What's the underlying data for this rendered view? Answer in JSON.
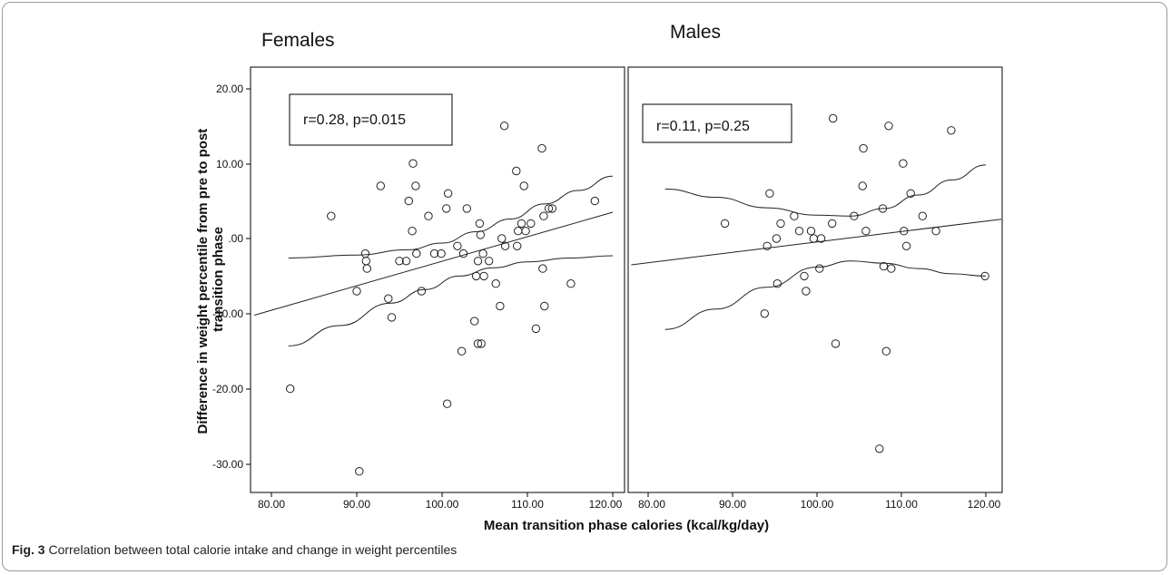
{
  "caption": {
    "label": "Fig. 3",
    "text": "Correlation between total calorie intake and change in weight percentiles"
  },
  "chart_data": {
    "type": "scatter",
    "xlabel": "Mean transition phase calories (kcal/kg/day)",
    "ylabel": "Difference in weight percentile from pre to post transition phase",
    "xlim": [
      78,
      122
    ],
    "ylim": [
      -33,
      23
    ],
    "xticks": [
      "80.00",
      "90.00",
      "100.00",
      "110.00",
      "120.00"
    ],
    "yticks": [
      "20.00",
      "10.00",
      ".00",
      "-10.00",
      "-20.00",
      "-30.00"
    ],
    "grid": false,
    "panels": [
      {
        "title": "Females",
        "annotation": "r=0.28, p=0.015",
        "fit": {
          "x": [
            78,
            120
          ],
          "y": [
            -10.2,
            3.5
          ]
        },
        "ci_upper": {
          "x": [
            82,
            90,
            96,
            100,
            104,
            108,
            112,
            116,
            120
          ],
          "y": [
            -2.6,
            -2.2,
            -1.5,
            -0.6,
            0.9,
            2.6,
            4.6,
            6.4,
            8.3
          ]
        },
        "ci_lower": {
          "x": [
            82,
            88,
            94,
            98,
            102,
            106,
            110,
            115,
            120
          ],
          "y": [
            -14.3,
            -11.6,
            -8.6,
            -6.8,
            -5.0,
            -3.9,
            -3.1,
            -2.6,
            -2.3
          ]
        },
        "points": [
          {
            "x": 82.2,
            "y": -20
          },
          {
            "x": 87,
            "y": 3
          },
          {
            "x": 90,
            "y": -7
          },
          {
            "x": 90.3,
            "y": -31
          },
          {
            "x": 91,
            "y": -2
          },
          {
            "x": 91.1,
            "y": -3
          },
          {
            "x": 91.2,
            "y": -4
          },
          {
            "x": 92.8,
            "y": 7
          },
          {
            "x": 93.7,
            "y": -8
          },
          {
            "x": 94.1,
            "y": -10.5
          },
          {
            "x": 95,
            "y": -3
          },
          {
            "x": 95.8,
            "y": -3
          },
          {
            "x": 96.1,
            "y": 5
          },
          {
            "x": 96.5,
            "y": 1
          },
          {
            "x": 96.6,
            "y": 10
          },
          {
            "x": 96.9,
            "y": 7
          },
          {
            "x": 97,
            "y": -2
          },
          {
            "x": 97.6,
            "y": -7
          },
          {
            "x": 98.4,
            "y": 3
          },
          {
            "x": 99.1,
            "y": -2
          },
          {
            "x": 99.9,
            "y": -2
          },
          {
            "x": 100.5,
            "y": 4
          },
          {
            "x": 100.6,
            "y": -22
          },
          {
            "x": 100.7,
            "y": 6
          },
          {
            "x": 101.8,
            "y": -1
          },
          {
            "x": 102.3,
            "y": -15
          },
          {
            "x": 102.5,
            "y": -2
          },
          {
            "x": 102.9,
            "y": 4
          },
          {
            "x": 103.8,
            "y": -11
          },
          {
            "x": 104,
            "y": -5
          },
          {
            "x": 104.2,
            "y": -3
          },
          {
            "x": 104.2,
            "y": -14
          },
          {
            "x": 104.4,
            "y": 2
          },
          {
            "x": 104.5,
            "y": 0.5
          },
          {
            "x": 104.6,
            "y": -14
          },
          {
            "x": 104.8,
            "y": -2
          },
          {
            "x": 104.9,
            "y": -5
          },
          {
            "x": 105.5,
            "y": -3
          },
          {
            "x": 106.3,
            "y": -6
          },
          {
            "x": 106.8,
            "y": -9
          },
          {
            "x": 107,
            "y": 0
          },
          {
            "x": 107.3,
            "y": 15
          },
          {
            "x": 107.4,
            "y": -1
          },
          {
            "x": 108.7,
            "y": 9
          },
          {
            "x": 108.8,
            "y": -1
          },
          {
            "x": 108.9,
            "y": 1
          },
          {
            "x": 109.3,
            "y": 2
          },
          {
            "x": 109.6,
            "y": 7
          },
          {
            "x": 109.8,
            "y": 1
          },
          {
            "x": 110.4,
            "y": 2
          },
          {
            "x": 111,
            "y": -12
          },
          {
            "x": 111.7,
            "y": 12
          },
          {
            "x": 111.8,
            "y": -4
          },
          {
            "x": 111.9,
            "y": 3
          },
          {
            "x": 112,
            "y": -9
          },
          {
            "x": 112.5,
            "y": 4
          },
          {
            "x": 112.9,
            "y": 4
          },
          {
            "x": 115.1,
            "y": -6
          },
          {
            "x": 117.9,
            "y": 5
          }
        ]
      },
      {
        "title": "Males",
        "annotation": "r=0.11, p=0.25",
        "fit": {
          "x": [
            78,
            122
          ],
          "y": [
            -3.5,
            2.6
          ]
        },
        "ci_upper": {
          "x": [
            82,
            88,
            94,
            100,
            104,
            108,
            112,
            116,
            120
          ],
          "y": [
            6.6,
            5.5,
            4.1,
            3.1,
            3.0,
            4.0,
            5.8,
            7.8,
            9.8
          ]
        },
        "ci_lower": {
          "x": [
            82,
            88,
            94,
            100,
            104,
            108,
            112,
            116,
            120
          ],
          "y": [
            -12.1,
            -9.4,
            -6.5,
            -3.8,
            -3.0,
            -3.3,
            -4.0,
            -4.7,
            -5.0
          ]
        },
        "points": [
          {
            "x": 89.1,
            "y": 2
          },
          {
            "x": 93.8,
            "y": -10
          },
          {
            "x": 94.1,
            "y": -1
          },
          {
            "x": 94.4,
            "y": 6
          },
          {
            "x": 95.2,
            "y": 0
          },
          {
            "x": 95.3,
            "y": -6
          },
          {
            "x": 95.7,
            "y": 2
          },
          {
            "x": 97.3,
            "y": 3
          },
          {
            "x": 97.9,
            "y": 1
          },
          {
            "x": 98.5,
            "y": -5
          },
          {
            "x": 98.7,
            "y": -7
          },
          {
            "x": 99.3,
            "y": 1
          },
          {
            "x": 99.6,
            "y": 0
          },
          {
            "x": 100.3,
            "y": -4
          },
          {
            "x": 100.5,
            "y": 0
          },
          {
            "x": 101.8,
            "y": 2
          },
          {
            "x": 101.9,
            "y": 16
          },
          {
            "x": 102.2,
            "y": -14
          },
          {
            "x": 104.4,
            "y": 3
          },
          {
            "x": 105.4,
            "y": 7
          },
          {
            "x": 105.5,
            "y": 12
          },
          {
            "x": 105.8,
            "y": 1
          },
          {
            "x": 107.4,
            "y": -28
          },
          {
            "x": 107.8,
            "y": 4
          },
          {
            "x": 107.9,
            "y": -3.7
          },
          {
            "x": 108.2,
            "y": -15
          },
          {
            "x": 108.5,
            "y": 15
          },
          {
            "x": 108.8,
            "y": -4
          },
          {
            "x": 110.2,
            "y": 10
          },
          {
            "x": 110.3,
            "y": 1
          },
          {
            "x": 110.6,
            "y": -1
          },
          {
            "x": 111.1,
            "y": 6
          },
          {
            "x": 112.5,
            "y": 3
          },
          {
            "x": 114.1,
            "y": 1
          },
          {
            "x": 115.9,
            "y": 14.4
          },
          {
            "x": 119.9,
            "y": -5
          }
        ]
      }
    ]
  }
}
